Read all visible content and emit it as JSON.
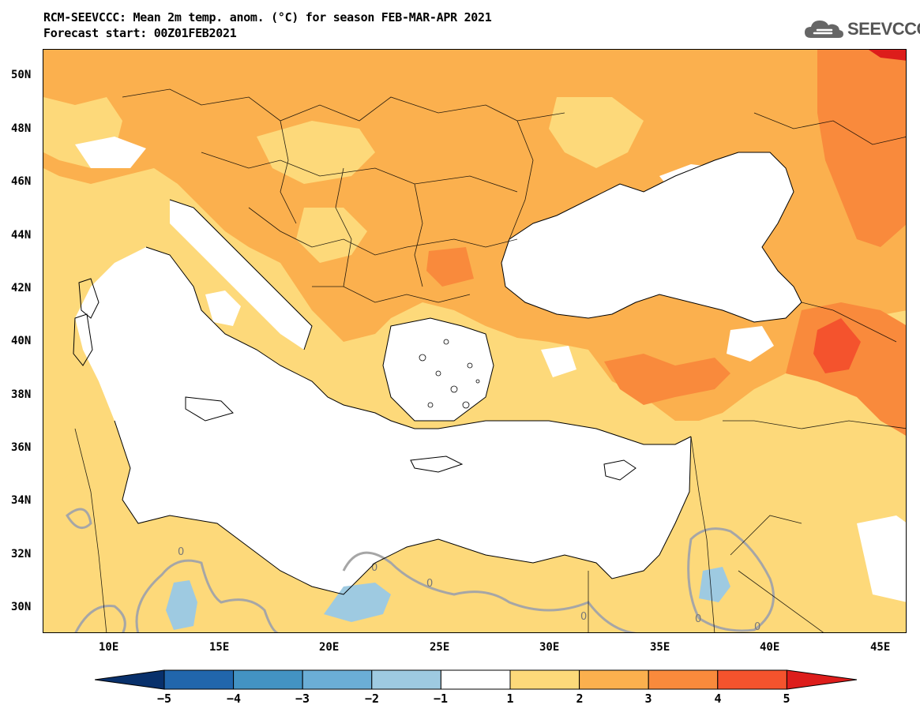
{
  "header": {
    "title_line1": "RCM-SEEVCCC: Mean 2m temp. anom. (°C) for season FEB-MAR-APR 2021",
    "title_line2": "Forecast start: 00Z01FEB2021"
  },
  "logo": {
    "text": "SEEVCCC",
    "icon": "cloud-icon"
  },
  "map": {
    "lat_labels": [
      "50N",
      "48N",
      "46N",
      "44N",
      "42N",
      "40N",
      "38N",
      "36N",
      "34N",
      "32N",
      "30N"
    ],
    "lon_labels": [
      "10E",
      "15E",
      "20E",
      "25E",
      "30E",
      "35E",
      "40E",
      "45E"
    ],
    "contour_labels": [
      "0",
      "0",
      "0",
      "0",
      "0",
      "0"
    ],
    "colors": {
      "anom_1_2": "#fdd97a",
      "anom_2_3": "#fbb04e",
      "anom_3_4": "#f98a3c",
      "anom_4_5": "#f4532d",
      "anom_5_plus": "#dd1d1b",
      "anom_m1_m2": "#9ecae1",
      "sea": "#ffffff",
      "contour_zero": "#a6a6a6"
    }
  },
  "colorbar": {
    "labels": [
      "−5",
      "−4",
      "−3",
      "−2",
      "−1",
      "1",
      "2",
      "3",
      "4",
      "5"
    ],
    "colors": [
      "#08306b",
      "#2166ac",
      "#4393c3",
      "#6baed6",
      "#9ecae1",
      "#ffffff",
      "#fdd97a",
      "#fbb04e",
      "#f98a3c",
      "#f4532d",
      "#dd1d1b"
    ]
  }
}
